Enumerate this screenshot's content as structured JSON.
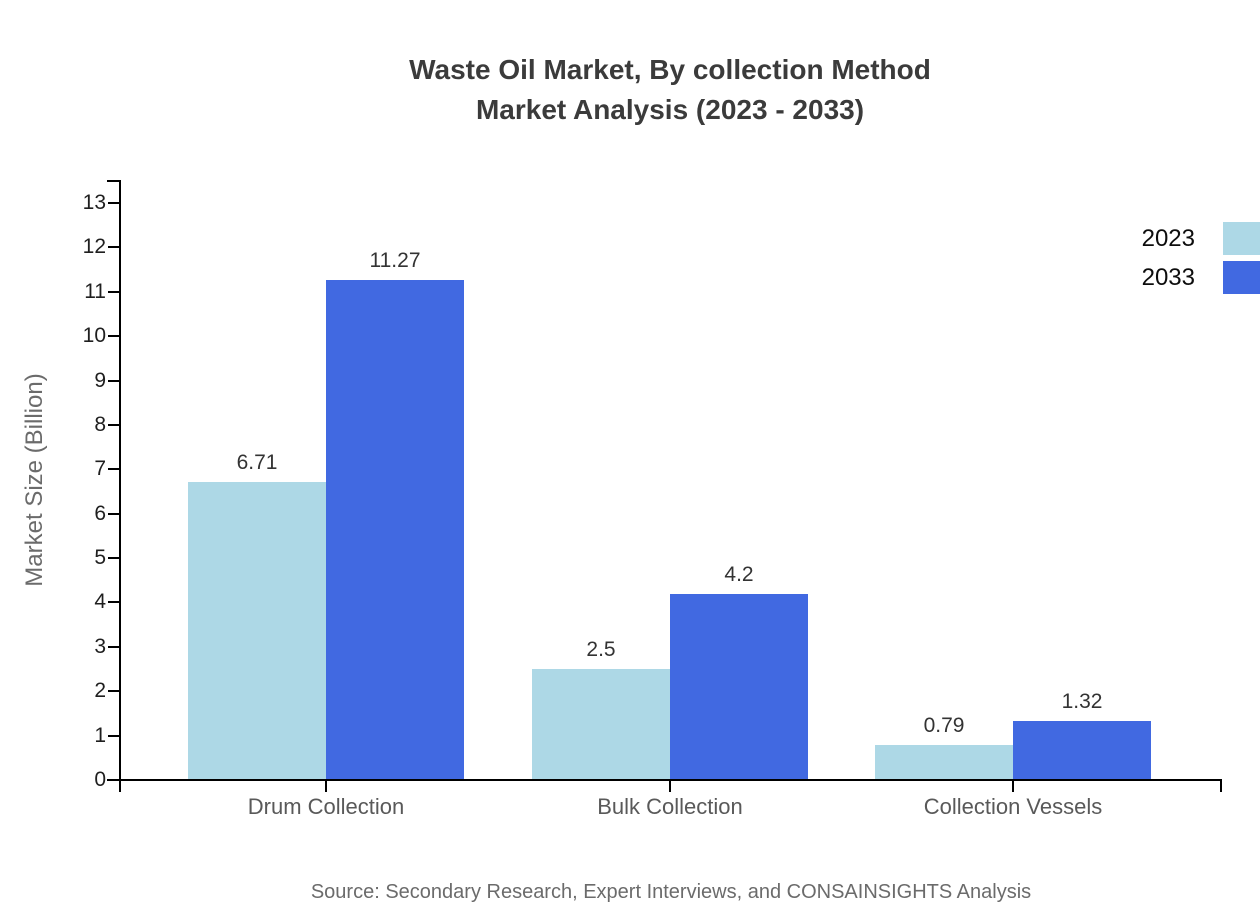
{
  "title": {
    "line1": "Waste Oil Market, By collection Method",
    "line2": "Market Analysis (2023 - 2033)"
  },
  "source": "Source: Secondary Research, Expert Interviews, and CONSAINSIGHTS Analysis",
  "chart_data": {
    "type": "bar",
    "title": "Waste Oil Market, By collection Method Market Analysis (2023 - 2033)",
    "categories": [
      "Drum Collection",
      "Bulk Collection",
      "Collection Vessels"
    ],
    "series": [
      {
        "name": "2023",
        "color": "#add8e6",
        "values": [
          6.71,
          2.5,
          0.79
        ]
      },
      {
        "name": "2033",
        "color": "#4169e1",
        "values": [
          11.27,
          4.2,
          1.32
        ]
      }
    ],
    "value_labels": [
      [
        "6.71",
        "2.5",
        "0.79"
      ],
      [
        "11.27",
        "4.2",
        "1.32"
      ]
    ],
    "xlabel": "",
    "ylabel": "Market Size (Billion)",
    "ylim": [
      0,
      13
    ],
    "yticks": [
      0,
      1,
      2,
      3,
      4,
      5,
      6,
      7,
      8,
      9,
      10,
      11,
      12,
      13
    ],
    "grid": false,
    "legend_position": "top-right",
    "bar_gap_within_group": 0
  },
  "colors": {
    "series_2023": "#add8e6",
    "series_2033": "#4169e1",
    "axis": "#000000",
    "title_text": "#3b3b3b",
    "tick_text": "#1f1f1f",
    "category_text": "#595959",
    "value_text": "#333333",
    "muted_text": "#6b6b6b"
  }
}
